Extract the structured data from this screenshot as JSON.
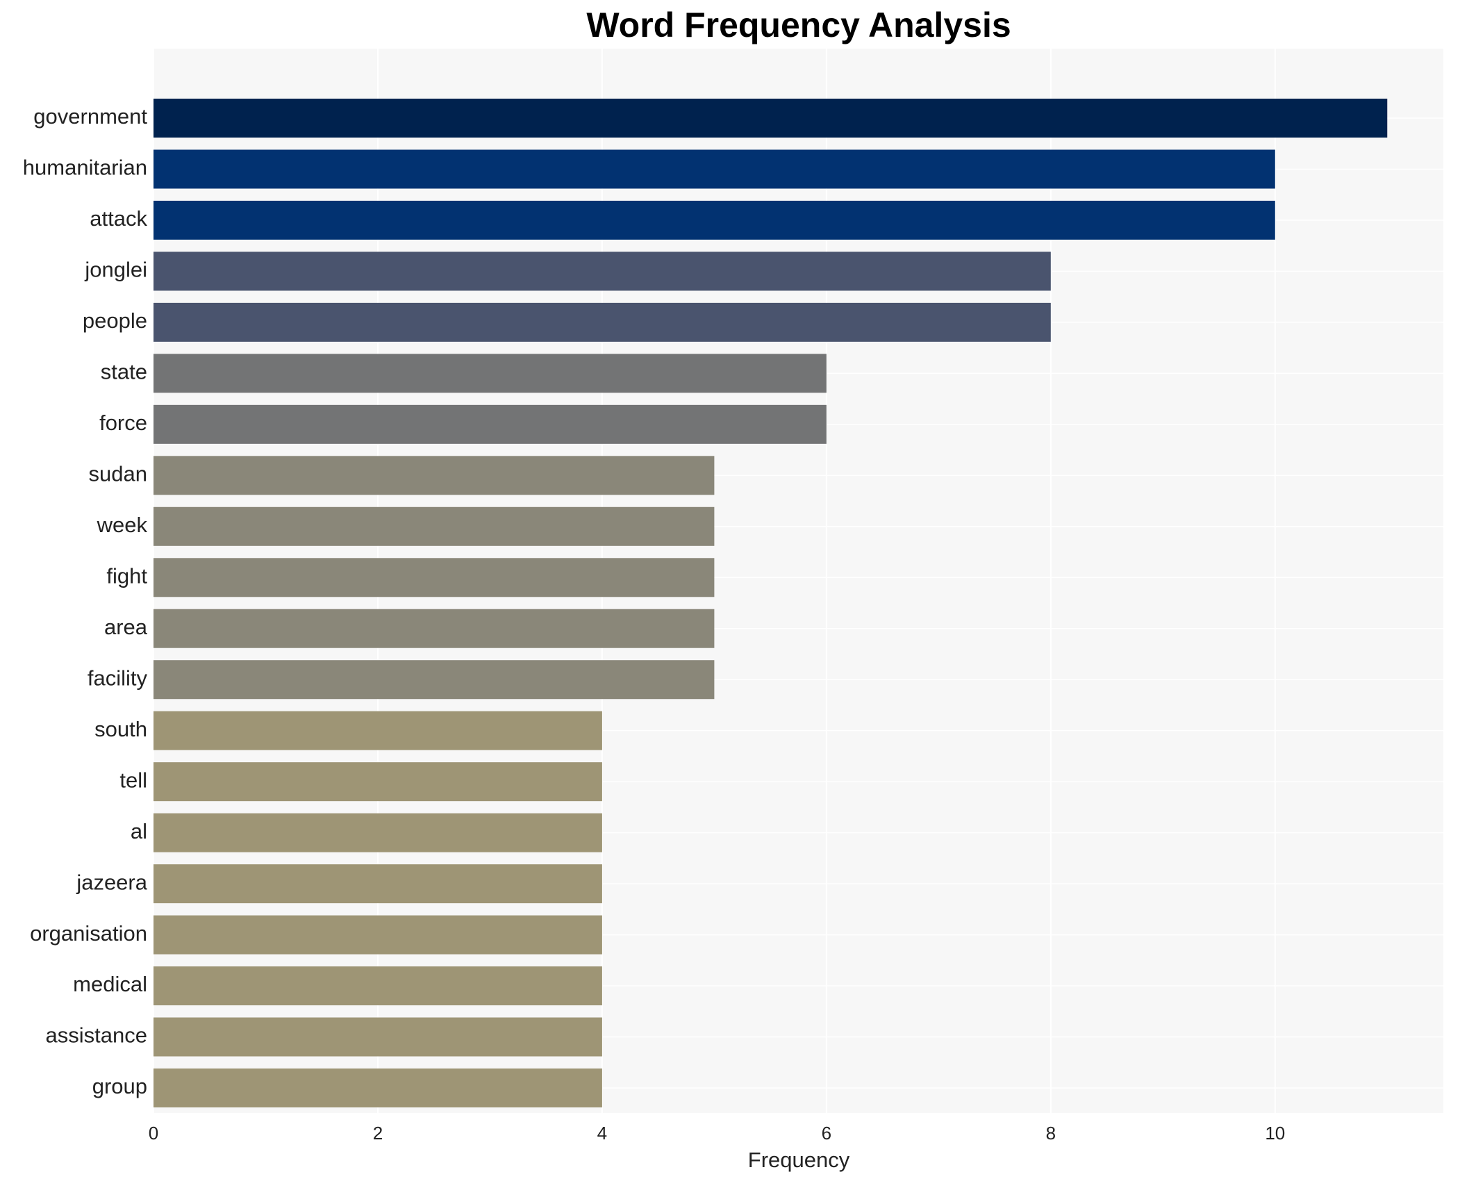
{
  "chart_data": {
    "type": "bar",
    "orientation": "horizontal",
    "title": "Word Frequency Analysis",
    "x_label": "Frequency",
    "categories": [
      "government",
      "humanitarian",
      "attack",
      "jonglei",
      "people",
      "state",
      "force",
      "sudan",
      "week",
      "fight",
      "area",
      "facility",
      "south",
      "tell",
      "al",
      "jazeera",
      "organisation",
      "medical",
      "assistance",
      "group"
    ],
    "values": [
      11,
      10,
      10,
      8,
      8,
      6,
      6,
      5,
      5,
      5,
      5,
      5,
      4,
      4,
      4,
      4,
      4,
      4,
      4,
      4
    ],
    "colors": [
      "#00224e",
      "#023271",
      "#023271",
      "#4a546e",
      "#4a546e",
      "#737475",
      "#737475",
      "#8a8779",
      "#8a8779",
      "#8a8779",
      "#8a8779",
      "#8a8779",
      "#9e9575",
      "#9e9575",
      "#9e9575",
      "#9e9575",
      "#9e9575",
      "#9e9575",
      "#9e9575",
      "#9e9575"
    ],
    "xlim": [
      0,
      11.5
    ],
    "xticks": [
      0,
      2,
      4,
      6,
      8,
      10
    ],
    "grid": true
  }
}
